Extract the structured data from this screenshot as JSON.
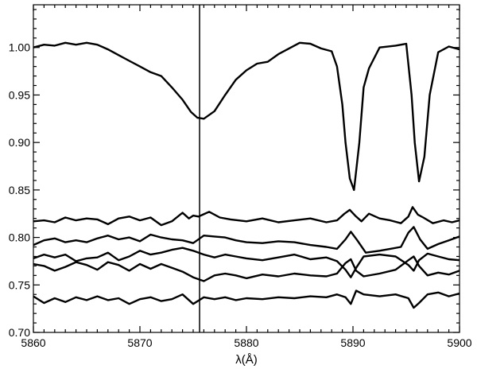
{
  "chart_data": {
    "type": "line",
    "xlabel": "λ(Å)",
    "ylabel": "",
    "xlim": [
      5860,
      5900
    ],
    "ylim": [
      0.7,
      1.045
    ],
    "x_ticks": [
      5860,
      5870,
      5880,
      5890,
      5900
    ],
    "x_tick_labels": [
      "5860",
      "5870",
      "5880",
      "5890",
      "5900"
    ],
    "y_ticks": [
      0.7,
      0.75,
      0.8,
      0.85,
      0.9,
      0.95,
      1.0
    ],
    "y_tick_labels": [
      "0.70",
      "0.75",
      "0.80",
      "0.85",
      "0.90",
      "0.95",
      "1.00"
    ],
    "grid": false,
    "vertical_line_x": 5875.6,
    "series": [
      {
        "x": [
          5860,
          5861,
          5862,
          5863,
          5864,
          5865,
          5866,
          5867,
          5868,
          5869,
          5870,
          5871,
          5872,
          5873,
          5874,
          5874.8,
          5875.4,
          5876,
          5877,
          5878,
          5879,
          5880,
          5881,
          5882,
          5883,
          5884,
          5885,
          5886,
          5887,
          5888,
          5888.5,
          5889,
          5889.3,
          5889.7,
          5890.1,
          5890.6,
          5891,
          5891.5,
          5892.5,
          5894,
          5895,
          5895.5,
          5895.8,
          5896.2,
          5896.7,
          5897.2,
          5898,
          5899,
          5900
        ],
        "y": [
          1.0,
          1.003,
          1.002,
          1.005,
          1.003,
          1.005,
          1.003,
          0.998,
          0.992,
          0.986,
          0.98,
          0.974,
          0.97,
          0.958,
          0.945,
          0.932,
          0.926,
          0.925,
          0.933,
          0.95,
          0.966,
          0.976,
          0.983,
          0.985,
          0.993,
          0.999,
          1.005,
          1.004,
          0.999,
          0.996,
          0.98,
          0.94,
          0.9,
          0.862,
          0.85,
          0.9,
          0.958,
          0.978,
          1.0,
          1.002,
          1.004,
          0.95,
          0.9,
          0.859,
          0.885,
          0.95,
          0.995,
          1.001,
          0.998
        ]
      },
      {
        "x": [
          5860,
          5861,
          5862,
          5863,
          5864,
          5865,
          5866,
          5867,
          5868,
          5869,
          5870,
          5871,
          5872,
          5873,
          5874,
          5874.6,
          5875,
          5875.5,
          5876.5,
          5877.5,
          5878.5,
          5880,
          5881.5,
          5883,
          5884.5,
          5886,
          5887.5,
          5888.5,
          5889.2,
          5889.7,
          5890.2,
          5890.8,
          5891.5,
          5892.5,
          5893.5,
          5894.5,
          5895.2,
          5895.6,
          5896.1,
          5896.6,
          5897.5,
          5898.5,
          5899.3,
          5900
        ],
        "y": [
          0.817,
          0.818,
          0.816,
          0.821,
          0.818,
          0.82,
          0.819,
          0.814,
          0.82,
          0.822,
          0.818,
          0.821,
          0.813,
          0.817,
          0.826,
          0.82,
          0.823,
          0.822,
          0.827,
          0.821,
          0.819,
          0.817,
          0.82,
          0.816,
          0.818,
          0.82,
          0.816,
          0.818,
          0.825,
          0.829,
          0.823,
          0.817,
          0.825,
          0.82,
          0.818,
          0.815,
          0.822,
          0.832,
          0.824,
          0.821,
          0.815,
          0.818,
          0.816,
          0.818
        ]
      },
      {
        "x": [
          5860,
          5861,
          5862,
          5863,
          5864,
          5865,
          5866,
          5867,
          5868,
          5869,
          5870,
          5871,
          5872,
          5873,
          5874,
          5875,
          5876,
          5877,
          5878,
          5879,
          5880,
          5881.5,
          5883,
          5884.5,
          5886,
          5887.5,
          5888.5,
          5889.3,
          5889.8,
          5890.4,
          5891.2,
          5892.5,
          5893.5,
          5894.5,
          5895.2,
          5895.7,
          5896.3,
          5897,
          5898,
          5899,
          5900
        ],
        "y": [
          0.792,
          0.797,
          0.799,
          0.795,
          0.797,
          0.795,
          0.799,
          0.802,
          0.798,
          0.8,
          0.796,
          0.803,
          0.8,
          0.798,
          0.797,
          0.794,
          0.802,
          0.801,
          0.8,
          0.797,
          0.795,
          0.794,
          0.796,
          0.795,
          0.792,
          0.79,
          0.788,
          0.798,
          0.806,
          0.797,
          0.784,
          0.786,
          0.788,
          0.79,
          0.805,
          0.811,
          0.798,
          0.788,
          0.793,
          0.797,
          0.801
        ]
      },
      {
        "x": [
          5860,
          5861,
          5862,
          5863,
          5864,
          5865,
          5866,
          5867,
          5868,
          5869,
          5870,
          5871,
          5872,
          5873,
          5874,
          5875,
          5876,
          5877,
          5878,
          5879,
          5880,
          5881.5,
          5883,
          5884.5,
          5886,
          5887.5,
          5888.5,
          5889.3,
          5889.8,
          5890.3,
          5891,
          5892.5,
          5894,
          5895.2,
          5895.7,
          5896.2,
          5897,
          5898,
          5899,
          5900
        ],
        "y": [
          0.778,
          0.782,
          0.779,
          0.782,
          0.775,
          0.778,
          0.779,
          0.784,
          0.776,
          0.78,
          0.786,
          0.782,
          0.784,
          0.787,
          0.789,
          0.786,
          0.782,
          0.779,
          0.782,
          0.78,
          0.778,
          0.776,
          0.779,
          0.782,
          0.777,
          0.779,
          0.775,
          0.766,
          0.758,
          0.768,
          0.78,
          0.782,
          0.78,
          0.771,
          0.765,
          0.776,
          0.783,
          0.78,
          0.777,
          0.776
        ]
      },
      {
        "x": [
          5860,
          5861,
          5862,
          5863,
          5864,
          5865,
          5866,
          5867,
          5868,
          5869,
          5870,
          5871,
          5872,
          5873,
          5874,
          5875,
          5876,
          5877,
          5878,
          5879,
          5880,
          5881.5,
          5883,
          5884.5,
          5886,
          5887.5,
          5888.5,
          5889.3,
          5889.8,
          5890.3,
          5891,
          5892.5,
          5894,
          5895.2,
          5895.7,
          5896.2,
          5897,
          5898,
          5899,
          5900
        ],
        "y": [
          0.772,
          0.77,
          0.765,
          0.769,
          0.774,
          0.771,
          0.766,
          0.774,
          0.771,
          0.765,
          0.772,
          0.767,
          0.772,
          0.768,
          0.764,
          0.758,
          0.754,
          0.76,
          0.762,
          0.76,
          0.757,
          0.761,
          0.759,
          0.762,
          0.76,
          0.759,
          0.762,
          0.773,
          0.777,
          0.765,
          0.759,
          0.762,
          0.766,
          0.776,
          0.78,
          0.77,
          0.76,
          0.763,
          0.761,
          0.765
        ]
      },
      {
        "x": [
          5860,
          5861,
          5862,
          5863,
          5864,
          5865,
          5866,
          5867,
          5868,
          5869,
          5870,
          5871,
          5872,
          5873,
          5874,
          5875,
          5876,
          5877,
          5878,
          5879,
          5880,
          5881.5,
          5883,
          5884.5,
          5886,
          5887.5,
          5888.5,
          5889.3,
          5889.8,
          5890.3,
          5891,
          5892.5,
          5894,
          5895.2,
          5895.7,
          5896.2,
          5897,
          5898,
          5899,
          5900
        ],
        "y": [
          0.738,
          0.731,
          0.736,
          0.732,
          0.737,
          0.734,
          0.738,
          0.734,
          0.736,
          0.73,
          0.735,
          0.737,
          0.733,
          0.735,
          0.74,
          0.73,
          0.737,
          0.735,
          0.737,
          0.734,
          0.736,
          0.735,
          0.737,
          0.736,
          0.738,
          0.737,
          0.74,
          0.737,
          0.73,
          0.744,
          0.74,
          0.738,
          0.74,
          0.736,
          0.726,
          0.731,
          0.74,
          0.742,
          0.738,
          0.741
        ]
      }
    ]
  }
}
